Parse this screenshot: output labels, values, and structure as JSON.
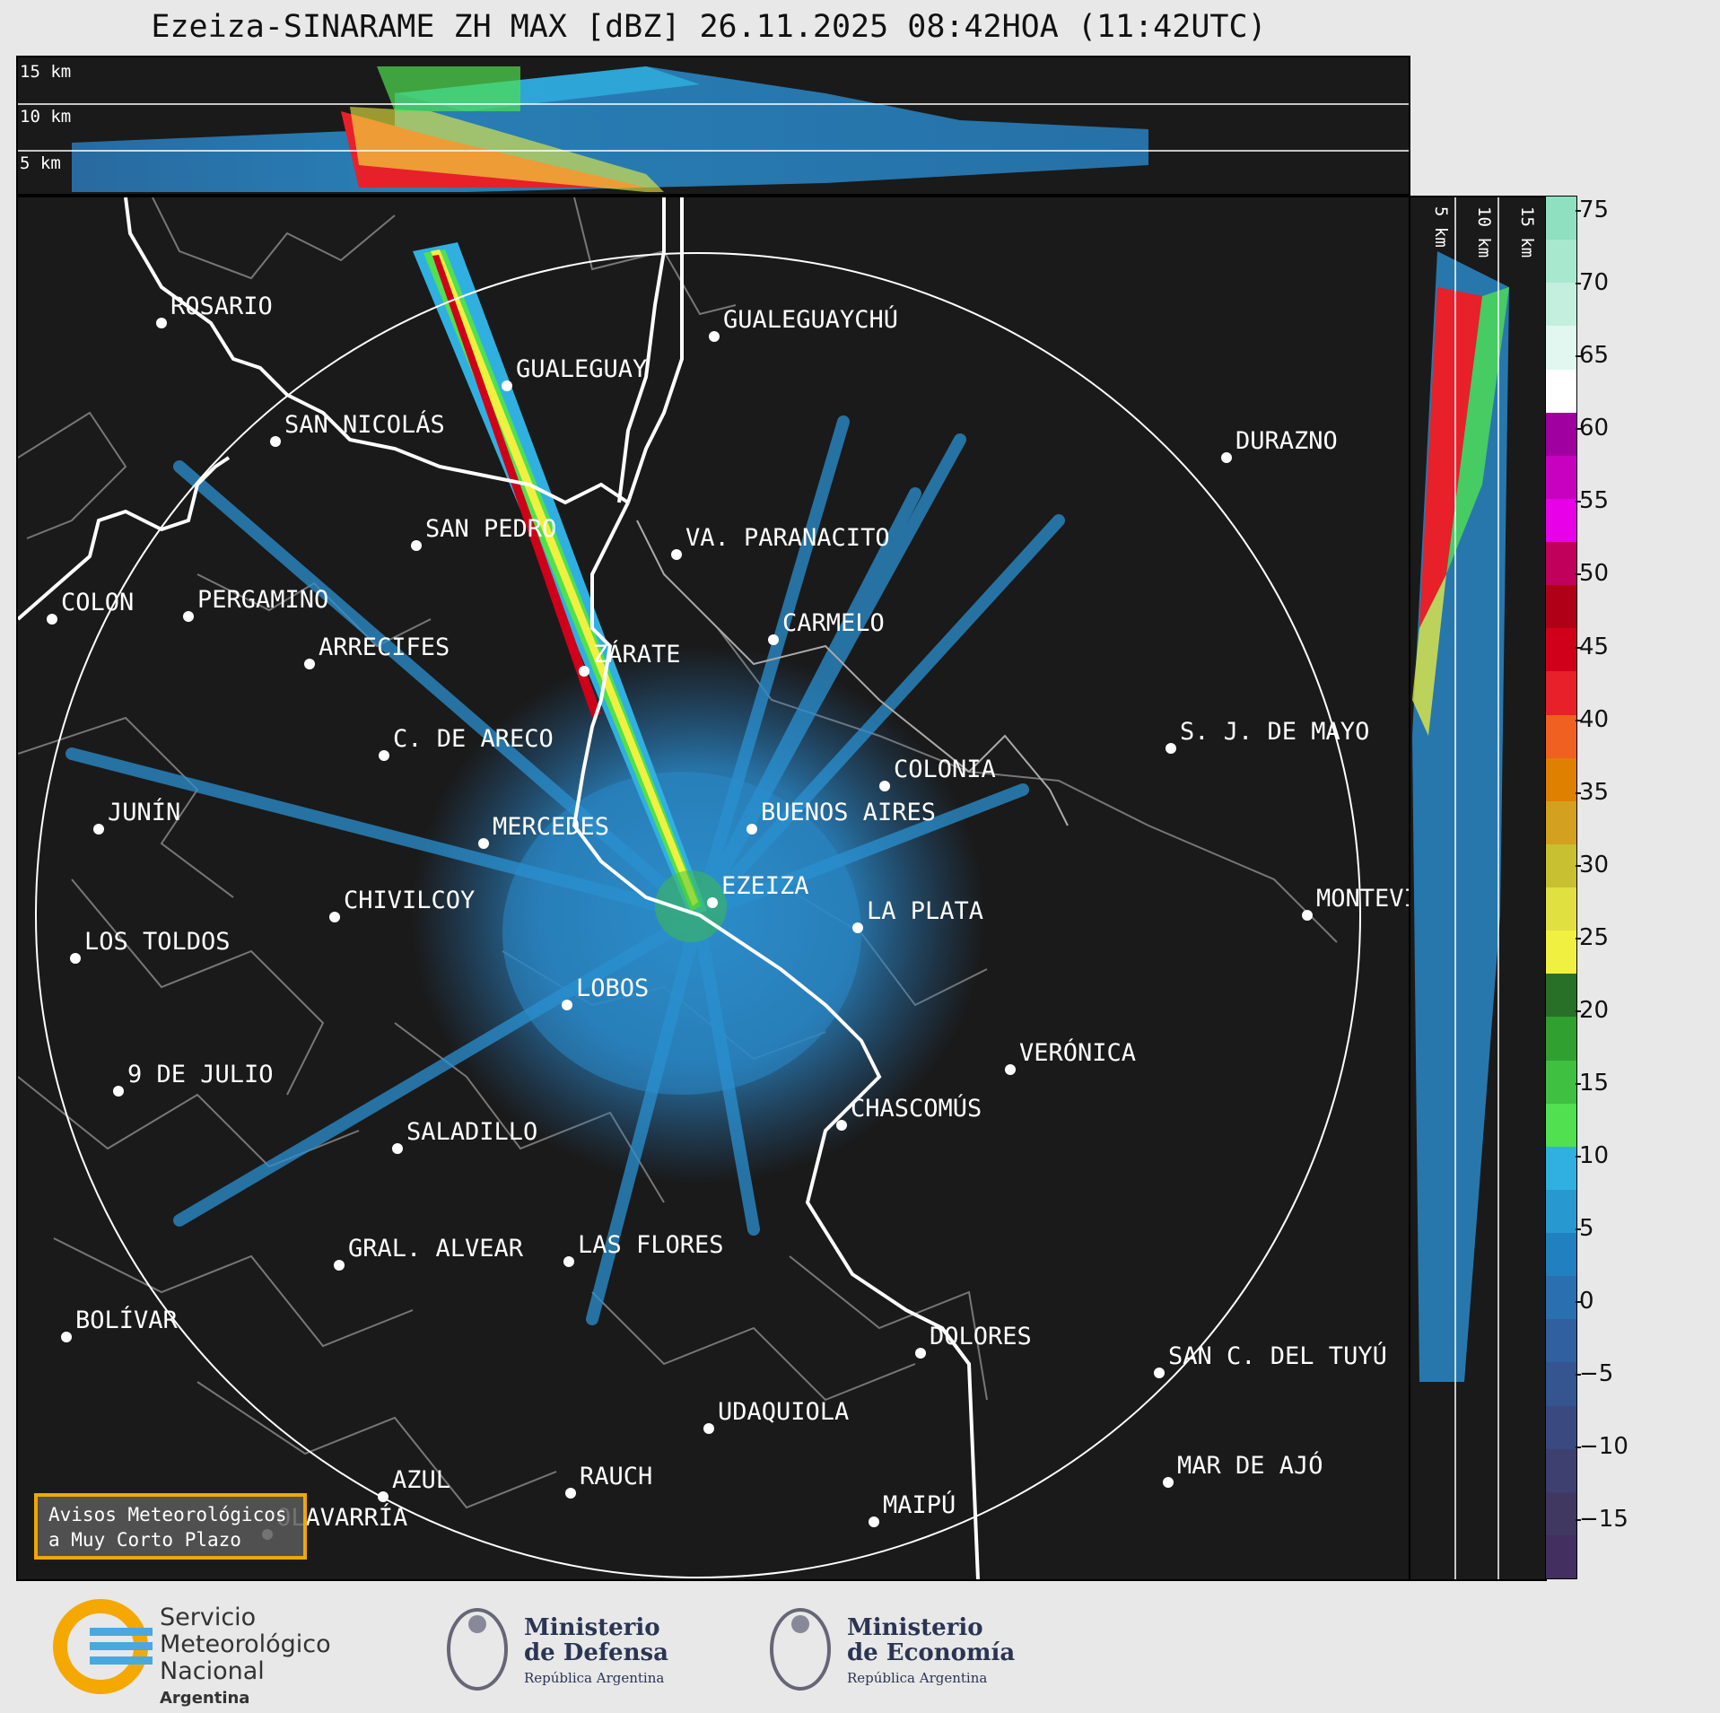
{
  "title": "Ezeiza-SINARAME ZH MAX [dBZ] 26.11.2025 08:42HOA (11:42UTC)",
  "height_labels_top": [
    "15 km",
    "10 km",
    "5 km"
  ],
  "height_labels_side": [
    "5 km",
    "10 km",
    "15 km"
  ],
  "cities": [
    {
      "name": "ROSARIO"
    },
    {
      "name": "GUALEGUAYCHÚ"
    },
    {
      "name": "GUALEGUAY"
    },
    {
      "name": "SAN NICOLÁS"
    },
    {
      "name": "DURAZNO"
    },
    {
      "name": "SAN PEDRO"
    },
    {
      "name": "VA. PARANACITO"
    },
    {
      "name": "COLON"
    },
    {
      "name": "PERGAMINO"
    },
    {
      "name": "CARMELO"
    },
    {
      "name": "ARRECIFES"
    },
    {
      "name": "ZÁRATE"
    },
    {
      "name": "C. DE ARECO"
    },
    {
      "name": "S. J. DE MAYO"
    },
    {
      "name": "COLONIA"
    },
    {
      "name": "JUNÍN"
    },
    {
      "name": "BUENOS AIRES"
    },
    {
      "name": "MERCEDES"
    },
    {
      "name": "EZEIZA"
    },
    {
      "name": "MONTEVIDEO"
    },
    {
      "name": "CHIVILCOY"
    },
    {
      "name": "LA PLATA"
    },
    {
      "name": "LOS TOLDOS"
    },
    {
      "name": "LOBOS"
    },
    {
      "name": "VERÓNICA"
    },
    {
      "name": "9 DE JULIO"
    },
    {
      "name": "CHASCOMÚS"
    },
    {
      "name": "SALADILLO"
    },
    {
      "name": "GRAL. ALVEAR"
    },
    {
      "name": "LAS FLORES"
    },
    {
      "name": "BOLÍVAR"
    },
    {
      "name": "DOLORES"
    },
    {
      "name": "SAN C. DEL TUYÚ"
    },
    {
      "name": "UDAQUIOLA"
    },
    {
      "name": "MAR DE AJÓ"
    },
    {
      "name": "AZUL"
    },
    {
      "name": "RAUCH"
    },
    {
      "name": "OLAVARRÍA"
    },
    {
      "name": "MAIPÚ"
    }
  ],
  "colorbar": {
    "unit": "dBZ",
    "ticks": [
      "75",
      "70",
      "65",
      "60",
      "55",
      "50",
      "45",
      "40",
      "35",
      "30",
      "25",
      "20",
      "15",
      "10",
      "5",
      "0",
      "−5",
      "−10",
      "−15"
    ],
    "colors": [
      "#8ee0c0",
      "#a8e8cf",
      "#c4efdf",
      "#e2f7ef",
      "#ffffff",
      "#a000a0",
      "#c800c0",
      "#e800e8",
      "#c0005a",
      "#b00018",
      "#d0001a",
      "#e8202a",
      "#f06020",
      "#e08000",
      "#d4a020",
      "#c8c030",
      "#e0e040",
      "#f0f040",
      "#287028",
      "#30a030",
      "#40c040",
      "#50e050",
      "#30b0e0",
      "#2898d0",
      "#2080c0",
      "#2a70b0",
      "#3060a0",
      "#355590",
      "#3a4a80",
      "#3e4070",
      "#403860",
      "#433060"
    ],
    "range": [
      -19,
      76
    ]
  },
  "avisos": {
    "line1": "Avisos Meteorológicos",
    "line2": "a Muy Corto Plazo"
  },
  "logos": {
    "smn": {
      "line1": "Servicio",
      "line2": "Meteorológico",
      "line3": "Nacional",
      "line4": "Argentina"
    },
    "defensa": {
      "line1": "Ministerio",
      "line2": "de Defensa",
      "line3": "República Argentina"
    },
    "economia": {
      "line1": "Ministerio",
      "line2": "de Economía",
      "line3": "República Argentina"
    }
  }
}
